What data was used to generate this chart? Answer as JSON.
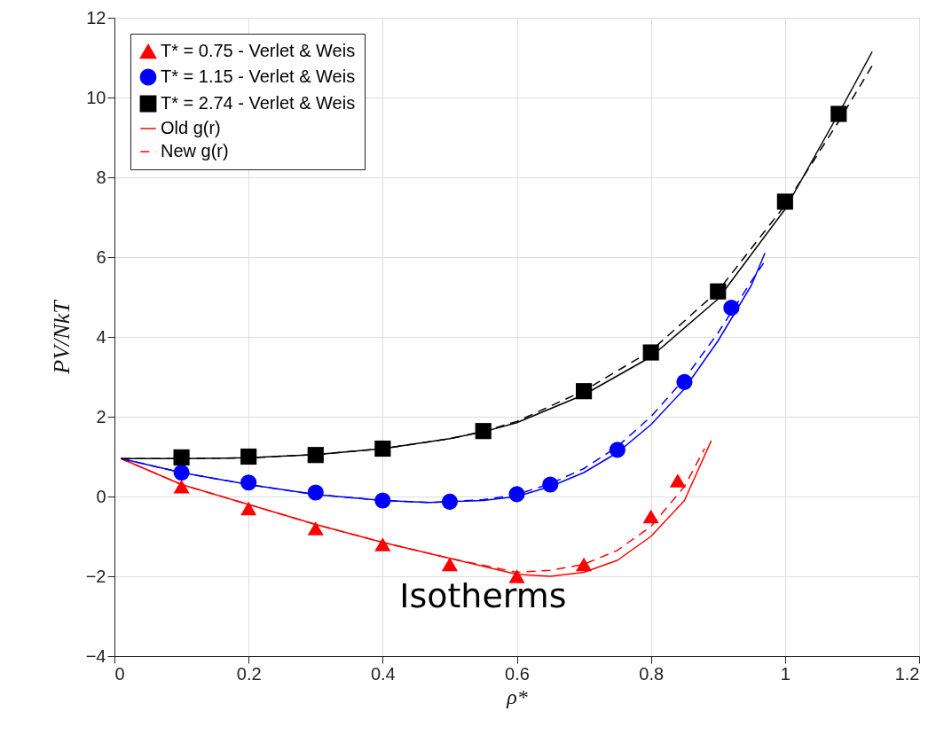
{
  "chart_data": {
    "type": "scatter",
    "xlabel": "ρ*",
    "ylabel": "PV/NkT",
    "xlim": [
      0,
      1.2
    ],
    "xticks": [
      0,
      0.2,
      0.4,
      0.6,
      0.8,
      1,
      1.2
    ],
    "ylim": [
      -4,
      12
    ],
    "yticks": [
      -4,
      -2,
      0,
      2,
      4,
      6,
      8,
      10,
      12
    ],
    "grid": true,
    "legend": "top left",
    "annotations": [
      "Isotherms"
    ],
    "series": [
      {
        "name": "T* = 0.75 - Verlet & Weis",
        "marker": "triangle",
        "color": "#ff0000",
        "x": [
          0.1,
          0.2,
          0.3,
          0.4,
          0.5,
          0.6,
          0.7,
          0.8,
          0.84
        ],
        "values": [
          0.25,
          -0.3,
          -0.8,
          -1.2,
          -1.7,
          -2.0,
          -1.7,
          -0.5,
          0.4
        ]
      },
      {
        "name": "T* = 1.15 - Verlet & Weis",
        "marker": "circle",
        "color": "#0000ff",
        "x": [
          0.1,
          0.2,
          0.3,
          0.4,
          0.5,
          0.6,
          0.65,
          0.75,
          0.85,
          0.92
        ],
        "values": [
          0.6,
          0.35,
          0.1,
          -0.1,
          -0.13,
          0.06,
          0.3,
          1.17,
          2.87,
          4.73
        ]
      },
      {
        "name": "T* = 2.74 - Verlet & Weis",
        "marker": "square",
        "color": "#000000",
        "x": [
          0.1,
          0.2,
          0.3,
          0.4,
          0.55,
          0.7,
          0.8,
          0.9,
          1.0,
          1.08
        ],
        "values": [
          0.98,
          1.0,
          1.04,
          1.2,
          1.64,
          2.64,
          3.61,
          5.14,
          7.39,
          9.59
        ]
      },
      {
        "name": "Old g(r)",
        "type": "line",
        "line_style": "solid",
        "color": "#ff0000",
        "x": [
          0.01,
          0.1,
          0.2,
          0.3,
          0.4,
          0.5,
          0.6,
          0.65,
          0.7,
          0.75,
          0.8,
          0.85,
          0.89
        ],
        "values": [
          0.95,
          0.3,
          -0.2,
          -0.7,
          -1.15,
          -1.55,
          -1.95,
          -2.0,
          -1.9,
          -1.6,
          -1.0,
          -0.1,
          1.4
        ]
      },
      {
        "name": "New g(r)",
        "type": "line",
        "line_style": "dashed",
        "color": "#ff0000",
        "x": [
          0.01,
          0.1,
          0.2,
          0.3,
          0.4,
          0.5,
          0.6,
          0.65,
          0.7,
          0.75,
          0.8,
          0.85,
          0.88
        ],
        "values": [
          0.95,
          0.3,
          -0.2,
          -0.7,
          -1.15,
          -1.55,
          -1.9,
          -1.85,
          -1.7,
          -1.35,
          -0.75,
          0.25,
          1.2
        ]
      },
      {
        "type": "line",
        "line_style": "solid",
        "color": "#0000ff",
        "x": [
          0.01,
          0.1,
          0.2,
          0.3,
          0.4,
          0.47,
          0.55,
          0.6,
          0.65,
          0.7,
          0.75,
          0.8,
          0.85,
          0.9,
          0.95,
          0.97
        ],
        "values": [
          0.95,
          0.6,
          0.3,
          0.05,
          -0.1,
          -0.15,
          -0.1,
          0.0,
          0.25,
          0.6,
          1.1,
          1.8,
          2.7,
          3.9,
          5.3,
          6.1
        ]
      },
      {
        "type": "line",
        "line_style": "dashed",
        "color": "#0000ff",
        "x": [
          0.01,
          0.1,
          0.2,
          0.3,
          0.4,
          0.47,
          0.55,
          0.6,
          0.65,
          0.7,
          0.75,
          0.8,
          0.85,
          0.9,
          0.95,
          0.97
        ],
        "values": [
          0.95,
          0.6,
          0.3,
          0.05,
          -0.1,
          -0.15,
          -0.08,
          0.05,
          0.32,
          0.7,
          1.25,
          2.0,
          2.95,
          4.1,
          5.4,
          5.9
        ]
      },
      {
        "type": "line",
        "line_style": "solid",
        "color": "#000000",
        "x": [
          0.01,
          0.1,
          0.2,
          0.3,
          0.4,
          0.5,
          0.55,
          0.6,
          0.7,
          0.8,
          0.9,
          1.0,
          1.08,
          1.13
        ],
        "values": [
          0.95,
          0.95,
          0.97,
          1.05,
          1.2,
          1.45,
          1.62,
          1.85,
          2.55,
          3.5,
          4.95,
          7.2,
          9.6,
          11.15
        ]
      },
      {
        "type": "line",
        "line_style": "dashed",
        "color": "#000000",
        "x": [
          0.01,
          0.1,
          0.2,
          0.3,
          0.4,
          0.5,
          0.55,
          0.6,
          0.7,
          0.8,
          0.9,
          1.0,
          1.08,
          1.13
        ],
        "values": [
          0.95,
          0.95,
          0.97,
          1.05,
          1.2,
          1.45,
          1.63,
          1.88,
          2.65,
          3.65,
          5.15,
          7.3,
          9.4,
          10.8
        ]
      }
    ]
  }
}
